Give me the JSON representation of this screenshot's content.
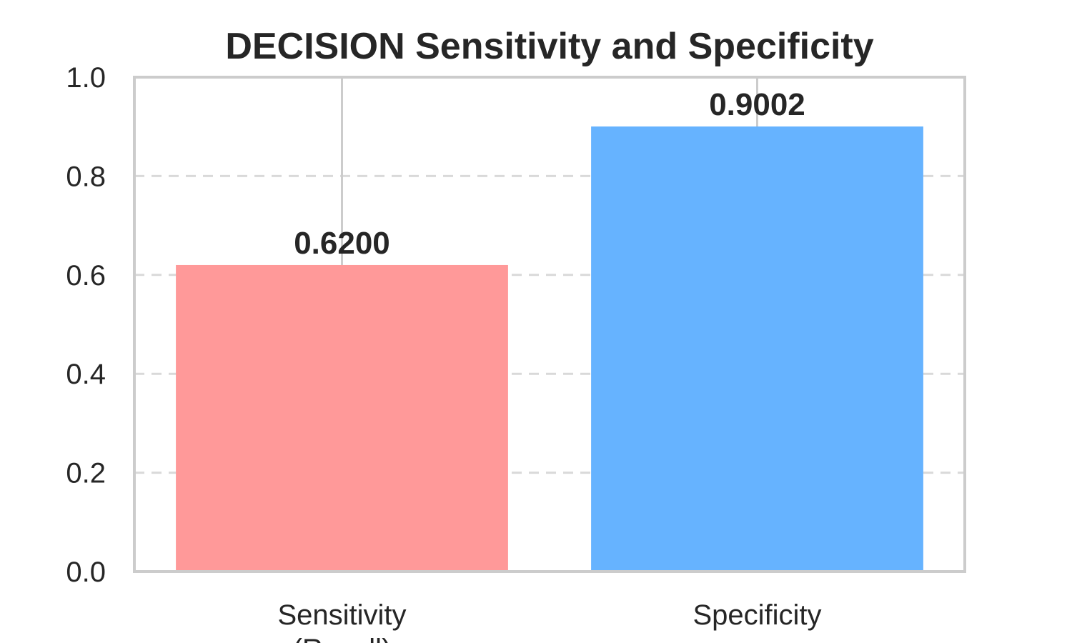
{
  "chart_data": {
    "type": "bar",
    "title": "DECISION Sensitivity and Specificity",
    "xlabel": "",
    "ylabel": "",
    "categories": [
      "Sensitivity\n(Recall)",
      "Specificity"
    ],
    "values": [
      0.62,
      0.9002
    ],
    "data_labels": [
      "0.6200",
      "0.9002"
    ],
    "colors": [
      "#ff9999",
      "#66b3ff"
    ],
    "ylim": [
      0,
      1.0
    ],
    "yticks": [
      "0.0",
      "0.2",
      "0.4",
      "0.6",
      "0.8",
      "1.0"
    ],
    "grid": "y dashed",
    "legend": "none"
  }
}
